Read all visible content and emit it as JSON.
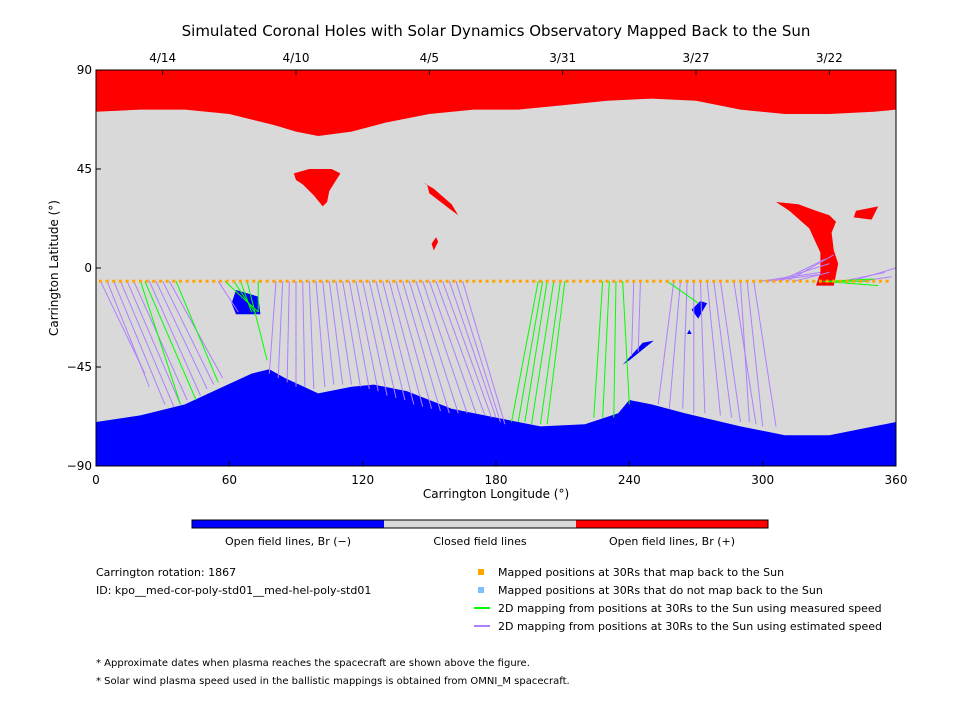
{
  "chart_data": {
    "type": "map",
    "title": "Simulated Coronal Holes with Solar Dynamics Observatory Mapped Back to the Sun",
    "xlabel": "Carrington Longitude (°)",
    "ylabel": "Carrington Latitude (°)",
    "xlim": [
      0,
      360
    ],
    "ylim": [
      -90,
      90
    ],
    "x_ticks": [
      "0",
      "60",
      "120",
      "180",
      "240",
      "300",
      "360"
    ],
    "x_tick_values": [
      0,
      60,
      120,
      180,
      240,
      300,
      360
    ],
    "y_ticks": [
      "90",
      "45",
      "0",
      "−45",
      "−90"
    ],
    "y_tick_values": [
      90,
      45,
      0,
      -45,
      -90
    ],
    "date_ticks": [
      {
        "label": "4/14",
        "lon": 30
      },
      {
        "label": "4/10",
        "lon": 90
      },
      {
        "label": "4/5",
        "lon": 150
      },
      {
        "label": "3/31",
        "lon": 210
      },
      {
        "label": "3/27",
        "lon": 270
      },
      {
        "label": "3/22",
        "lon": 330
      }
    ],
    "colors": {
      "open_negative": "#0000ff",
      "closed": "#d9d9d9",
      "open_positive": "#ff0000",
      "mapped_point": "#ffa500",
      "unmapped_point": "#7fbfff",
      "measured_line": "#00ff00",
      "estimated_line": "#b07fff"
    },
    "north_boundary": [
      [
        0,
        71
      ],
      [
        20,
        72
      ],
      [
        40,
        72
      ],
      [
        60,
        70
      ],
      [
        80,
        65
      ],
      [
        90,
        62
      ],
      [
        100,
        60
      ],
      [
        115,
        62
      ],
      [
        130,
        66
      ],
      [
        150,
        70
      ],
      [
        170,
        72
      ],
      [
        190,
        72
      ],
      [
        210,
        74
      ],
      [
        230,
        76
      ],
      [
        250,
        77
      ],
      [
        270,
        76
      ],
      [
        290,
        72
      ],
      [
        310,
        70
      ],
      [
        330,
        70
      ],
      [
        350,
        71
      ],
      [
        360,
        72
      ]
    ],
    "south_boundary": [
      [
        0,
        -70
      ],
      [
        20,
        -67
      ],
      [
        40,
        -62
      ],
      [
        55,
        -55
      ],
      [
        70,
        -48
      ],
      [
        78,
        -46
      ],
      [
        85,
        -50
      ],
      [
        100,
        -57
      ],
      [
        115,
        -54
      ],
      [
        125,
        -53
      ],
      [
        140,
        -56
      ],
      [
        160,
        -64
      ],
      [
        180,
        -68
      ],
      [
        200,
        -72
      ],
      [
        220,
        -71
      ],
      [
        235,
        -66
      ],
      [
        240,
        -60
      ],
      [
        250,
        -62
      ],
      [
        265,
        -66
      ],
      [
        290,
        -72
      ],
      [
        310,
        -76
      ],
      [
        330,
        -76
      ],
      [
        350,
        -72
      ],
      [
        360,
        -70
      ]
    ],
    "positive_holes": [
      [
        [
          89,
          43
        ],
        [
          96,
          45
        ],
        [
          106,
          45
        ],
        [
          110,
          43
        ],
        [
          105,
          35
        ],
        [
          104,
          30
        ],
        [
          102,
          28
        ],
        [
          98,
          33
        ],
        [
          93,
          38
        ],
        [
          90,
          40
        ]
      ],
      [
        [
          147,
          39
        ],
        [
          152,
          36
        ],
        [
          160,
          29
        ],
        [
          163,
          24
        ],
        [
          159,
          27
        ],
        [
          150,
          34
        ],
        [
          149,
          38
        ]
      ],
      [
        [
          153,
          14
        ],
        [
          154,
          12
        ],
        [
          152,
          8
        ],
        [
          151,
          11
        ]
      ],
      [
        [
          306,
          30
        ],
        [
          316,
          29
        ],
        [
          324,
          26
        ],
        [
          330,
          24
        ],
        [
          333,
          21
        ],
        [
          331,
          16
        ],
        [
          332,
          8
        ],
        [
          334,
          2
        ],
        [
          332,
          -8
        ],
        [
          324,
          -8
        ],
        [
          326,
          -2
        ],
        [
          326,
          7
        ],
        [
          321,
          18
        ],
        [
          312,
          26
        ]
      ],
      [
        [
          342,
          26
        ],
        [
          352,
          28
        ],
        [
          349,
          22
        ],
        [
          341,
          23
        ]
      ]
    ],
    "negative_holes": [
      [
        [
          63,
          -10
        ],
        [
          73,
          -13
        ],
        [
          74,
          -21
        ],
        [
          63,
          -21
        ],
        [
          61,
          -16
        ]
      ],
      [
        [
          272,
          -15
        ],
        [
          275,
          -16
        ],
        [
          271,
          -23
        ],
        [
          268,
          -19
        ]
      ],
      [
        [
          267,
          -28
        ],
        [
          268,
          -30
        ],
        [
          266,
          -30
        ]
      ],
      [
        [
          240,
          -42
        ],
        [
          251,
          -33
        ],
        [
          246,
          -34
        ],
        [
          237,
          -44
        ]
      ]
    ],
    "points_lon": [
      2,
      5,
      8,
      11,
      14,
      17,
      20,
      23,
      26,
      29,
      32,
      35,
      38,
      41,
      44,
      47,
      50,
      53,
      56,
      59,
      62,
      65,
      68,
      71,
      74,
      77,
      80,
      83,
      86,
      89,
      92,
      95,
      98,
      101,
      104,
      107,
      110,
      113,
      116,
      119,
      122,
      125,
      128,
      131,
      134,
      137,
      140,
      143,
      146,
      149,
      152,
      155,
      158,
      161,
      164,
      167,
      170,
      173,
      176,
      179,
      182,
      185,
      188,
      191,
      194,
      197,
      200,
      203,
      206,
      209,
      212,
      215,
      218,
      221,
      224,
      227,
      230,
      233,
      236,
      239,
      242,
      245,
      248,
      251,
      254,
      257,
      260,
      263,
      266,
      269,
      272,
      275,
      278,
      281,
      284,
      287,
      290,
      293,
      296,
      299,
      302,
      305,
      308,
      311,
      314,
      317,
      320,
      323,
      326,
      329,
      332,
      335,
      338,
      341,
      344,
      347,
      350,
      353,
      356
    ],
    "points_lat": -6,
    "measured_lines": [
      [
        20,
        -6,
        38,
        -62
      ],
      [
        22,
        -6,
        45,
        -60
      ],
      [
        36,
        -6,
        55,
        -52
      ],
      [
        58,
        -6,
        73,
        -20
      ],
      [
        62,
        -6,
        72,
        -21
      ],
      [
        65,
        -6,
        70,
        -20
      ],
      [
        68,
        -6,
        77,
        -42
      ],
      [
        73,
        -6,
        73,
        -20
      ],
      [
        199,
        -6,
        187,
        -70
      ],
      [
        201,
        -6,
        190,
        -70
      ],
      [
        203,
        -6,
        193,
        -70
      ],
      [
        206,
        -6,
        196,
        -71
      ],
      [
        209,
        -6,
        200,
        -71
      ],
      [
        211,
        -6,
        203,
        -71
      ],
      [
        228,
        -6,
        224,
        -68
      ],
      [
        231,
        -6,
        228,
        -68
      ],
      [
        234,
        -6,
        233,
        -68
      ],
      [
        237,
        -6,
        240,
        -62
      ],
      [
        257,
        -6,
        271,
        -16
      ],
      [
        327,
        -6,
        352,
        -8
      ],
      [
        329,
        -6,
        350,
        -5
      ],
      [
        331,
        -6,
        348,
        -6
      ]
    ],
    "estimated_lines": [
      [
        2,
        -6,
        22,
        -48
      ],
      [
        5,
        -6,
        24,
        -54
      ],
      [
        8,
        -6,
        31,
        -62
      ],
      [
        11,
        -6,
        35,
        -63
      ],
      [
        14,
        -6,
        38,
        -62
      ],
      [
        17,
        -6,
        41,
        -60
      ],
      [
        24,
        -6,
        47,
        -58
      ],
      [
        27,
        -6,
        50,
        -55
      ],
      [
        30,
        -6,
        53,
        -53
      ],
      [
        33,
        -6,
        57,
        -50
      ],
      [
        55,
        -6,
        64,
        -20
      ],
      [
        81,
        -6,
        78,
        -48
      ],
      [
        84,
        -6,
        82,
        -50
      ],
      [
        87,
        -6,
        86,
        -52
      ],
      [
        90,
        -6,
        90,
        -54
      ],
      [
        93,
        -6,
        94,
        -54
      ],
      [
        96,
        -6,
        98,
        -55
      ],
      [
        99,
        -6,
        103,
        -54
      ],
      [
        102,
        -6,
        107,
        -53
      ],
      [
        105,
        -6,
        111,
        -53
      ],
      [
        108,
        -6,
        115,
        -53
      ],
      [
        111,
        -6,
        119,
        -54
      ],
      [
        114,
        -6,
        123,
        -55
      ],
      [
        117,
        -6,
        127,
        -56
      ],
      [
        120,
        -6,
        131,
        -58
      ],
      [
        123,
        -6,
        135,
        -59
      ],
      [
        126,
        -6,
        139,
        -60
      ],
      [
        129,
        -6,
        143,
        -62
      ],
      [
        132,
        -6,
        147,
        -63
      ],
      [
        135,
        -6,
        151,
        -64
      ],
      [
        138,
        -6,
        155,
        -65
      ],
      [
        141,
        -6,
        159,
        -66
      ],
      [
        144,
        -6,
        163,
        -66
      ],
      [
        147,
        -6,
        167,
        -66
      ],
      [
        150,
        -6,
        171,
        -66
      ],
      [
        153,
        -6,
        175,
        -67
      ],
      [
        156,
        -6,
        178,
        -68
      ],
      [
        159,
        -6,
        180,
        -68
      ],
      [
        162,
        -6,
        182,
        -70
      ],
      [
        165,
        -6,
        184,
        -71
      ],
      [
        242,
        -6,
        241,
        -40
      ],
      [
        245,
        -6,
        244,
        -38
      ],
      [
        260,
        -6,
        253,
        -62
      ],
      [
        263,
        -6,
        258,
        -64
      ],
      [
        266,
        -6,
        264,
        -64
      ],
      [
        269,
        -6,
        269,
        -66
      ],
      [
        272,
        -6,
        274,
        -66
      ],
      [
        275,
        -6,
        281,
        -67
      ],
      [
        278,
        -6,
        286,
        -68
      ],
      [
        281,
        -6,
        290,
        -70
      ],
      [
        287,
        -6,
        297,
        -71
      ],
      [
        290,
        -6,
        294,
        -70
      ],
      [
        293,
        -6,
        300,
        -72
      ],
      [
        296,
        -6,
        306,
        -72
      ],
      [
        299,
        -6,
        326,
        -2
      ],
      [
        302,
        -6,
        325,
        -3
      ],
      [
        305,
        -6,
        330,
        2
      ],
      [
        308,
        -6,
        328,
        4
      ],
      [
        311,
        -6,
        332,
        6
      ],
      [
        314,
        -6,
        330,
        -2
      ],
      [
        336,
        -6,
        355,
        -2
      ],
      [
        340,
        -6,
        360,
        0
      ],
      [
        344,
        -6,
        358,
        -4
      ]
    ],
    "colorbar": {
      "open_negative_label": "Open field lines, Br (−)",
      "closed_label": "Closed field lines",
      "open_positive_label": "Open field lines, Br (+)"
    }
  },
  "info": {
    "rotation": "Carrington rotation: 1867",
    "id": "ID: kpo__med-cor-poly-std01__med-hel-poly-std01"
  },
  "legend": {
    "mapped": "Mapped positions at 30Rs that map back to the Sun",
    "unmapped": "Mapped positions at 30Rs that do not map back to the Sun",
    "measured": "2D mapping from positions at 30Rs to the Sun using measured speed",
    "estimated": "2D mapping from positions at 30Rs to the Sun using estimated speed"
  },
  "notes": [
    "* Approximate dates when plasma reaches the spacecraft are shown above the figure.",
    "* Solar wind plasma speed used in the ballistic mappings is obtained from OMNI_M spacecraft."
  ]
}
